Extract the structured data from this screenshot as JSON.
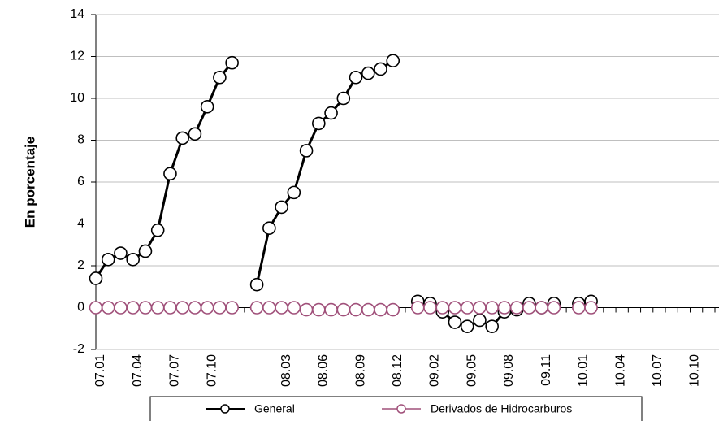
{
  "chart_data": {
    "type": "line",
    "y_label": "En porcentaje",
    "categories": [
      "07.01",
      null,
      null,
      "07.04",
      null,
      null,
      "07.07",
      null,
      null,
      "07.10",
      null,
      null,
      null,
      null,
      null,
      "08.03",
      null,
      null,
      "08.06",
      null,
      null,
      "08.09",
      null,
      null,
      "08.12",
      null,
      null,
      "09.02",
      null,
      null,
      "09.05",
      null,
      null,
      "09.08",
      null,
      null,
      "09.11",
      null,
      null,
      "10.01",
      null,
      null,
      "10.04",
      null,
      null,
      "10.07",
      null,
      null,
      "10.10",
      null,
      null
    ],
    "series": [
      {
        "name": "General",
        "color": "#000000",
        "values": [
          1.4,
          2.3,
          2.6,
          2.3,
          2.7,
          3.7,
          6.4,
          8.1,
          8.3,
          9.6,
          11.0,
          11.7,
          null,
          1.1,
          3.8,
          4.8,
          5.5,
          7.5,
          8.8,
          9.3,
          10.0,
          11.0,
          11.2,
          11.4,
          11.8,
          null,
          0.3,
          0.2,
          -0.2,
          -0.7,
          -0.9,
          -0.6,
          -0.9,
          -0.2,
          -0.1,
          0.2,
          0.0,
          0.2,
          null,
          0.2,
          0.3,
          null,
          null,
          null,
          null,
          null,
          null,
          null,
          null,
          null,
          null
        ]
      },
      {
        "name": "Derivados de Hidrocarburos",
        "color": "#a0507a",
        "values": [
          0,
          0,
          0,
          0,
          0,
          0,
          0,
          0,
          0,
          0,
          0,
          0,
          null,
          0,
          0,
          0,
          0,
          -0.1,
          -0.1,
          -0.1,
          -0.1,
          -0.1,
          -0.1,
          -0.1,
          -0.1,
          null,
          0,
          0,
          0,
          0,
          0,
          0,
          0,
          0,
          0,
          0,
          0,
          0,
          null,
          0,
          0,
          null,
          null,
          null,
          null,
          null,
          null,
          null,
          null,
          null,
          null
        ]
      }
    ],
    "ylim": [
      -2,
      14
    ],
    "yticks": [
      -2,
      0,
      2,
      4,
      6,
      8,
      10,
      12,
      14
    ],
    "grid": true
  }
}
